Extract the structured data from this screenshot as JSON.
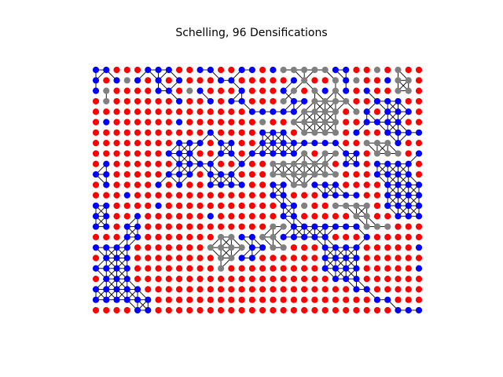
{
  "figure": {
    "title": "Schelling, 96 Densifications"
  },
  "graph": {
    "grid_columns": 32,
    "grid_rows": 24,
    "colors": {
      "red": "#ff0000",
      "blue": "#0000ff",
      "gray": "#808080",
      "edge": "#000000",
      "background": "#ffffff"
    },
    "nodes": [
      "BBRRRBBBRRBBRRBBRBGGGGGBBRRGRGRR",
      "BRBGBRBRBRRRBBRRRRRBGRRGBGRRBGGR",
      "BGRRRRBBRGBRRRBRRRBGRGBGBRBRRGGR",
      "RGRRRRRRBRRBRBBRRRGBBGGGGRRBBBRR",
      "RRRRRRRRRRRRRRRBBBBBGGGGRGBRBBBR",
      "RBRRRRRRBRRRRRRRGRRGGGGGRRBBBBRR",
      "RRRRRRRRRRRBRRRRBBBRGGGGRBRRBBBB",
      "RRRRRRRRBBBRBBRRBBBBBBBBRRGGGBRR",
      "RRRRRRRBBBRRBBRBBBBBGRGGBBRGGGRB",
      "RBRRRRRRBBBBRRBRRGGGGGGRBBRBBBBR",
      "BBRRRRRBBBRBBBRRRGGGGGGGRRRBBBBR",
      "RBRRRRBRBRRBBBBRRBBGGBBBRRRRBBBB",
      "RRRBRRRRRRRRRRRRRBBRRRBBBBRRBBBB",
      "BBRRRRBRRRRRRRRRRRBBGRRGGGGRBBBB",
      "BBRRBRRRRRRBRRRRRRBBRRRRRGGRRBBB",
      "BBRBBRRRRRRRRRRRRGGBBBBBBBGGGRRR",
      "RRRBBRRRRRRRGGBBGGBBBBBRRRBRRRRR",
      "BBBBRRRRRRRGGGGBBGGRRRBBBBRRRRRB",
      "RBBBRRRRRRRRGGBBRRRRRRBBBBRRRRRR",
      "BBBBRRRRRRRRGRRRRRRRRRBBBBRRRRRB",
      "RBBBRRRRRRRRRRRRRRRRRRRBBBRRRRRR",
      "BBBBBRRRRRRRRRRRRRRRRRRRRBBRRRRR",
      "BBBBBBRRRRRRRRRRRRRRRRRRRRRBBRRR",
      "RRRRBBRRRRRRRRRRRRRRRRRRRRRRRBBB"
    ]
  }
}
